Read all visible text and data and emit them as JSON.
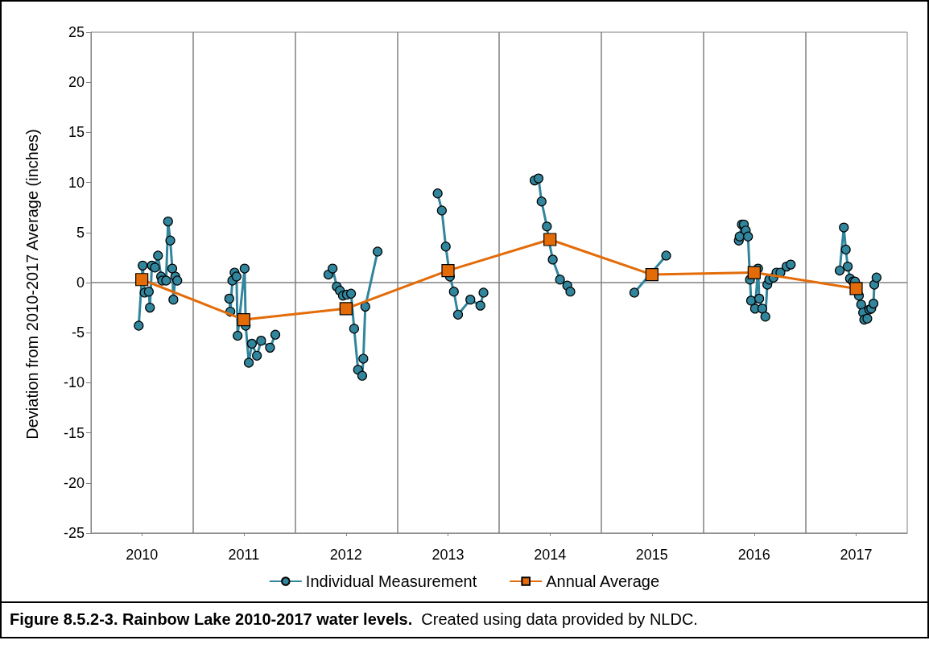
{
  "chart_data": {
    "type": "line",
    "ylabel": "Deviation from 2010-2017 Average (inches)",
    "xlim": [
      "2010-01-01",
      "2018-01-01"
    ],
    "xticks": [
      {
        "value": "2010-07-02",
        "label": "2010"
      },
      {
        "value": "2011-07-02",
        "label": "2011"
      },
      {
        "value": "2012-07-02",
        "label": "2012"
      },
      {
        "value": "2013-07-02",
        "label": "2013"
      },
      {
        "value": "2014-07-02",
        "label": "2014"
      },
      {
        "value": "2015-07-02",
        "label": "2015"
      },
      {
        "value": "2016-07-02",
        "label": "2016"
      },
      {
        "value": "2017-07-02",
        "label": "2017"
      }
    ],
    "ylim": [
      -25,
      25
    ],
    "yticks": [
      -25,
      -20,
      -15,
      -10,
      -5,
      0,
      5,
      10,
      15,
      20,
      25
    ],
    "grid": false,
    "legend": "bottom",
    "line_style": "solid",
    "series": [
      {
        "name": "Individual Measurement",
        "color": "#31859c",
        "marker": "circle",
        "x": [
          "2010-06-21",
          "2010-07-05",
          "2010-07-12",
          "2010-07-27",
          "2010-07-31",
          "2010-08-07",
          "2010-08-18",
          "2010-08-29",
          "2010-09-09",
          "2010-09-13",
          "2010-09-27",
          "2010-10-04",
          "2010-10-12",
          "2010-10-19",
          "2010-10-23",
          "2010-10-30",
          "2010-11-06",
          null,
          "2011-05-11",
          "2011-05-15",
          "2011-05-22",
          "2011-05-30",
          "2011-06-06",
          "2011-06-10",
          "2011-07-05",
          "2011-07-09",
          "2011-07-20",
          "2011-07-31",
          "2011-08-18",
          "2011-09-02",
          "2011-10-04",
          "2011-10-23",
          null,
          "2012-04-30",
          "2012-05-15",
          "2012-05-30",
          "2012-06-10",
          "2012-06-21",
          "2012-07-05",
          "2012-07-20",
          "2012-07-31",
          "2012-08-14",
          "2012-08-29",
          "2012-09-02",
          "2012-09-09",
          "2012-10-23",
          null,
          "2013-05-26",
          "2013-06-10",
          "2013-06-24",
          "2013-07-09",
          "2013-07-23",
          "2013-08-07",
          "2013-09-20",
          "2013-10-26",
          "2013-11-06",
          null,
          "2014-05-08",
          "2014-05-22",
          "2014-06-02",
          "2014-06-21",
          "2014-06-28",
          "2014-07-12",
          "2014-08-07",
          "2014-09-02",
          "2014-09-13",
          null,
          "2015-04-30",
          "2015-08-22",
          null,
          "2016-05-08",
          "2016-05-11",
          "2016-05-19",
          "2016-05-26",
          "2016-06-02",
          "2016-06-10",
          "2016-06-17",
          "2016-06-21",
          "2016-07-05",
          "2016-07-16",
          "2016-07-20",
          "2016-07-31",
          "2016-08-11",
          "2016-08-18",
          "2016-08-25",
          "2016-09-09",
          "2016-09-20",
          "2016-10-04",
          "2016-10-26",
          "2016-11-10",
          null,
          "2017-05-04",
          "2017-05-19",
          "2017-05-26",
          "2017-06-02",
          "2017-06-10",
          "2017-06-21",
          "2017-06-28",
          "2017-07-12",
          "2017-07-20",
          "2017-07-27",
          "2017-07-31",
          "2017-08-11",
          "2017-08-18",
          "2017-08-25",
          "2017-09-02",
          "2017-09-05",
          "2017-09-13"
        ],
        "values": [
          -4.3,
          1.7,
          -1.0,
          -0.9,
          -2.5,
          1.7,
          1.5,
          2.7,
          0.6,
          0.2,
          0.2,
          6.1,
          4.2,
          1.4,
          -1.7,
          0.6,
          0.2,
          null,
          -1.6,
          -2.9,
          0.2,
          1.0,
          0.6,
          -5.3,
          1.4,
          -4.3,
          -8.0,
          -6.1,
          -7.3,
          -5.8,
          -6.5,
          -5.2,
          null,
          0.8,
          1.4,
          -0.4,
          -0.8,
          -1.3,
          -1.2,
          -1.1,
          -4.6,
          -8.7,
          -9.3,
          -7.6,
          -2.4,
          3.1,
          null,
          8.9,
          7.2,
          3.6,
          0.6,
          -0.9,
          -3.2,
          -1.7,
          -2.3,
          -1.0,
          null,
          10.2,
          10.4,
          8.1,
          5.6,
          4.2,
          2.3,
          0.3,
          -0.3,
          -0.9,
          null,
          -1.0,
          2.7,
          null,
          4.2,
          4.6,
          5.8,
          5.8,
          5.2,
          4.6,
          0.3,
          -1.8,
          -2.6,
          1.4,
          -1.6,
          -2.6,
          -3.4,
          -0.2,
          0.3,
          0.5,
          1.0,
          1.0,
          1.6,
          1.8,
          null,
          1.2,
          5.5,
          3.3,
          1.6,
          0.4,
          0.1,
          0.1,
          -1.3,
          -2.2,
          -3.0,
          -3.7,
          -3.6,
          -2.7,
          -2.6,
          -2.1,
          -0.2,
          0.5
        ]
      },
      {
        "name": "Annual Average",
        "color": "#e36c09",
        "marker": "square",
        "x": [
          "2010-07-02",
          "2011-07-02",
          "2012-07-02",
          "2013-07-02",
          "2014-07-02",
          "2015-07-02",
          "2016-07-02",
          "2017-07-02"
        ],
        "values": [
          0.3,
          -3.7,
          -2.6,
          1.2,
          4.3,
          0.8,
          1.0,
          -0.6
        ]
      }
    ],
    "ref_lines": [
      {
        "axis": "y",
        "value": 0,
        "color": "#808080"
      },
      {
        "axis": "x",
        "value": "2011-01-01",
        "color": "#808080"
      },
      {
        "axis": "x",
        "value": "2012-01-01",
        "color": "#808080"
      },
      {
        "axis": "x",
        "value": "2013-01-01",
        "color": "#808080"
      },
      {
        "axis": "x",
        "value": "2014-01-01",
        "color": "#808080"
      },
      {
        "axis": "x",
        "value": "2015-01-01",
        "color": "#808080"
      },
      {
        "axis": "x",
        "value": "2016-01-01",
        "color": "#808080"
      },
      {
        "axis": "x",
        "value": "2017-01-01",
        "color": "#808080"
      }
    ],
    "annotations": [
      "Figure 8.5.2-3.  Rainbow Lake 2010-2017 water levels.",
      "Created using data provided by NLDC."
    ]
  }
}
